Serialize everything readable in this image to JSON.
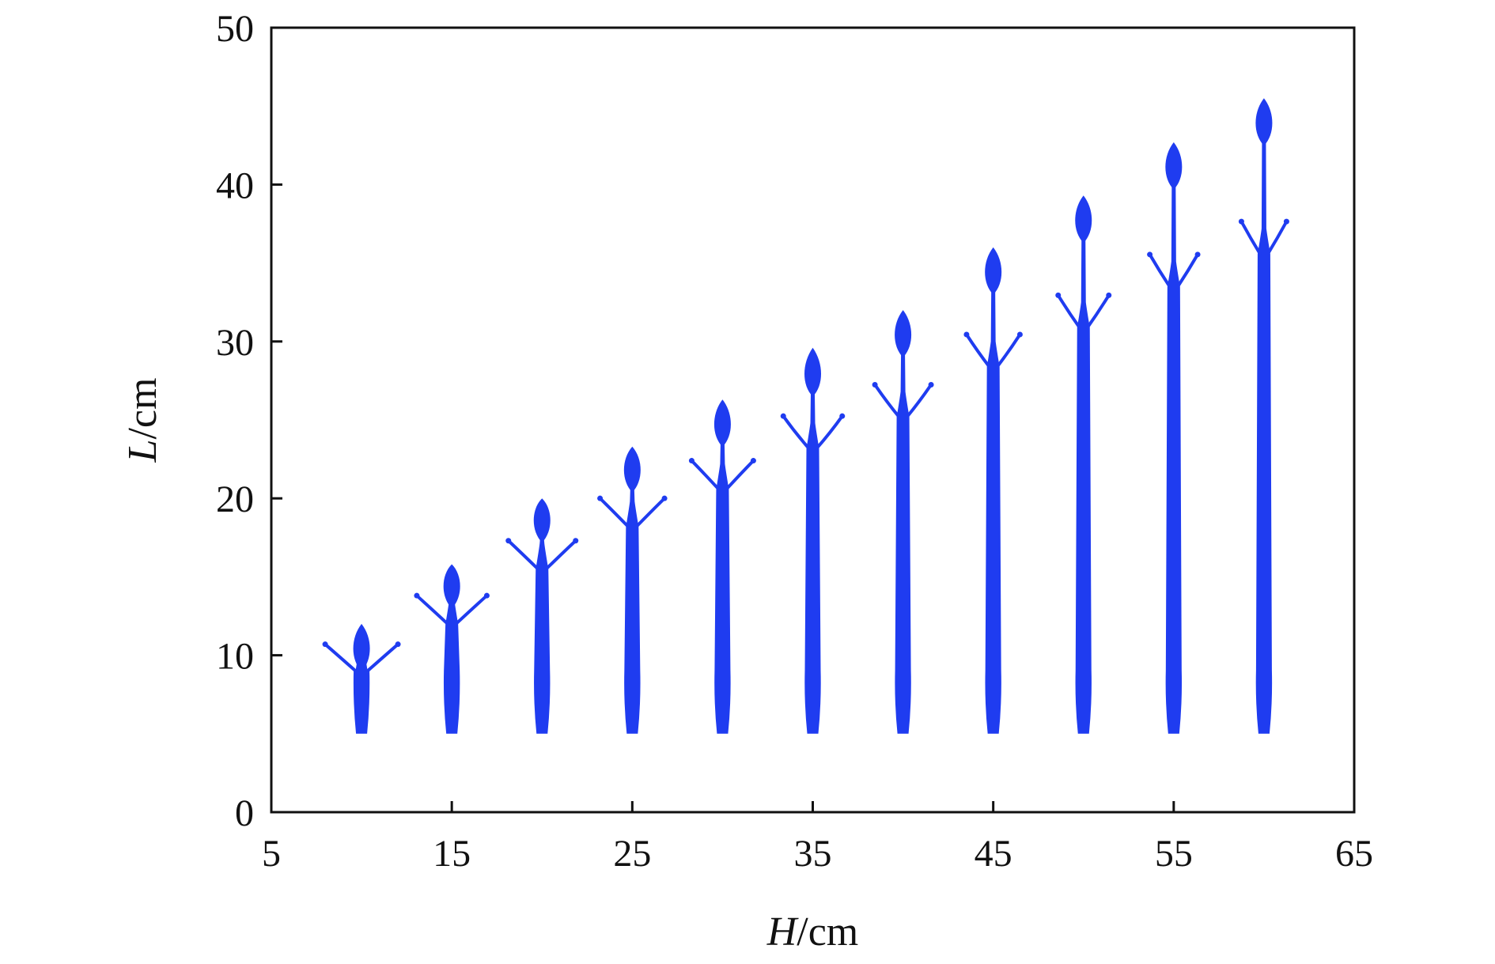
{
  "chart_data": {
    "type": "scatter",
    "xlabel": {
      "var": "H",
      "unit": "/cm"
    },
    "ylabel": {
      "var": "L",
      "unit": "/cm"
    },
    "xlim": [
      5,
      65
    ],
    "ylim": [
      0,
      50
    ],
    "xticks": [
      5,
      15,
      25,
      35,
      45,
      55,
      65
    ],
    "yticks": [
      0,
      10,
      20,
      30,
      40,
      50
    ],
    "xtick_labels": [
      "5",
      "15",
      "25",
      "35",
      "45",
      "55",
      "65"
    ],
    "ytick_labels": [
      "0",
      "10",
      "20",
      "30",
      "40",
      "50"
    ],
    "grid": false,
    "marker_color": "#1f3cf0",
    "series": [
      {
        "values": [
          {
            "H": 10,
            "base": 5,
            "arms": 10.5,
            "bulb": 10.5,
            "top": 12
          },
          {
            "H": 15,
            "base": 5,
            "arms": 13.6,
            "bulb": 14.5,
            "top": 15.8
          },
          {
            "H": 20,
            "base": 5,
            "arms": 17.1,
            "bulb": 18.7,
            "top": 20
          },
          {
            "H": 25,
            "base": 5,
            "arms": 19.8,
            "bulb": 21.9,
            "top": 23.3
          },
          {
            "H": 30,
            "base": 5,
            "arms": 22.2,
            "bulb": 24.8,
            "top": 26.3
          },
          {
            "H": 35,
            "base": 5,
            "arms": 24.8,
            "bulb": 28,
            "top": 29.6
          },
          {
            "H": 40,
            "base": 5,
            "arms": 26.8,
            "bulb": 30.5,
            "top": 32
          },
          {
            "H": 45,
            "base": 5,
            "arms": 30,
            "bulb": 34.5,
            "top": 36
          },
          {
            "H": 50,
            "base": 5,
            "arms": 32.5,
            "bulb": 37.8,
            "top": 39.3
          },
          {
            "H": 55,
            "base": 5,
            "arms": 35.1,
            "bulb": 41.2,
            "top": 42.7
          },
          {
            "H": 60,
            "base": 5,
            "arms": 37.2,
            "bulb": 44,
            "top": 45.5
          }
        ]
      }
    ]
  }
}
